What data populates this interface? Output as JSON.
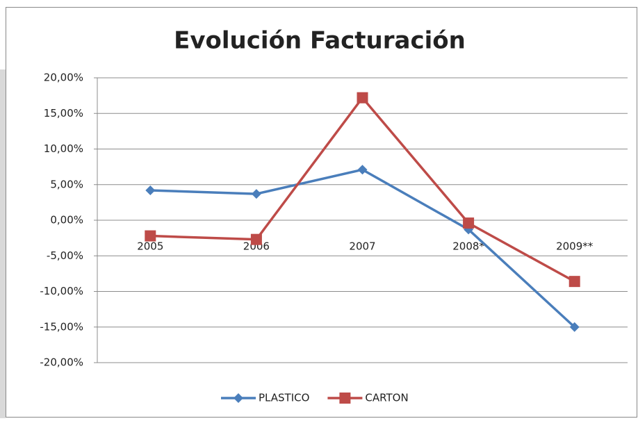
{
  "chart_data": {
    "type": "line",
    "title": "Evolución Facturación",
    "categories": [
      "2005",
      "2006",
      "2007",
      "2008*",
      "2009**"
    ],
    "series": [
      {
        "name": "PLASTICO",
        "color": "#4a7ebb",
        "marker": "diamond",
        "values": [
          4.2,
          3.7,
          7.1,
          -1.3,
          -15.0
        ]
      },
      {
        "name": "CARTON",
        "color": "#be4b48",
        "marker": "square",
        "values": [
          -2.2,
          -2.7,
          17.2,
          -0.4,
          -8.6
        ]
      }
    ],
    "ylim": [
      -20,
      20
    ],
    "yticks": [
      {
        "value": -20,
        "label": "-20,00%"
      },
      {
        "value": -15,
        "label": "-15,00%"
      },
      {
        "value": -10,
        "label": "-10,00%"
      },
      {
        "value": -5,
        "label": "-5,00%"
      },
      {
        "value": 0,
        "label": "0,00%"
      },
      {
        "value": 5,
        "label": "5,00%"
      },
      {
        "value": 10,
        "label": "10,00%"
      },
      {
        "value": 15,
        "label": "15,00%"
      },
      {
        "value": 20,
        "label": "20,00%"
      }
    ],
    "grid": true,
    "legend": "bottom"
  }
}
